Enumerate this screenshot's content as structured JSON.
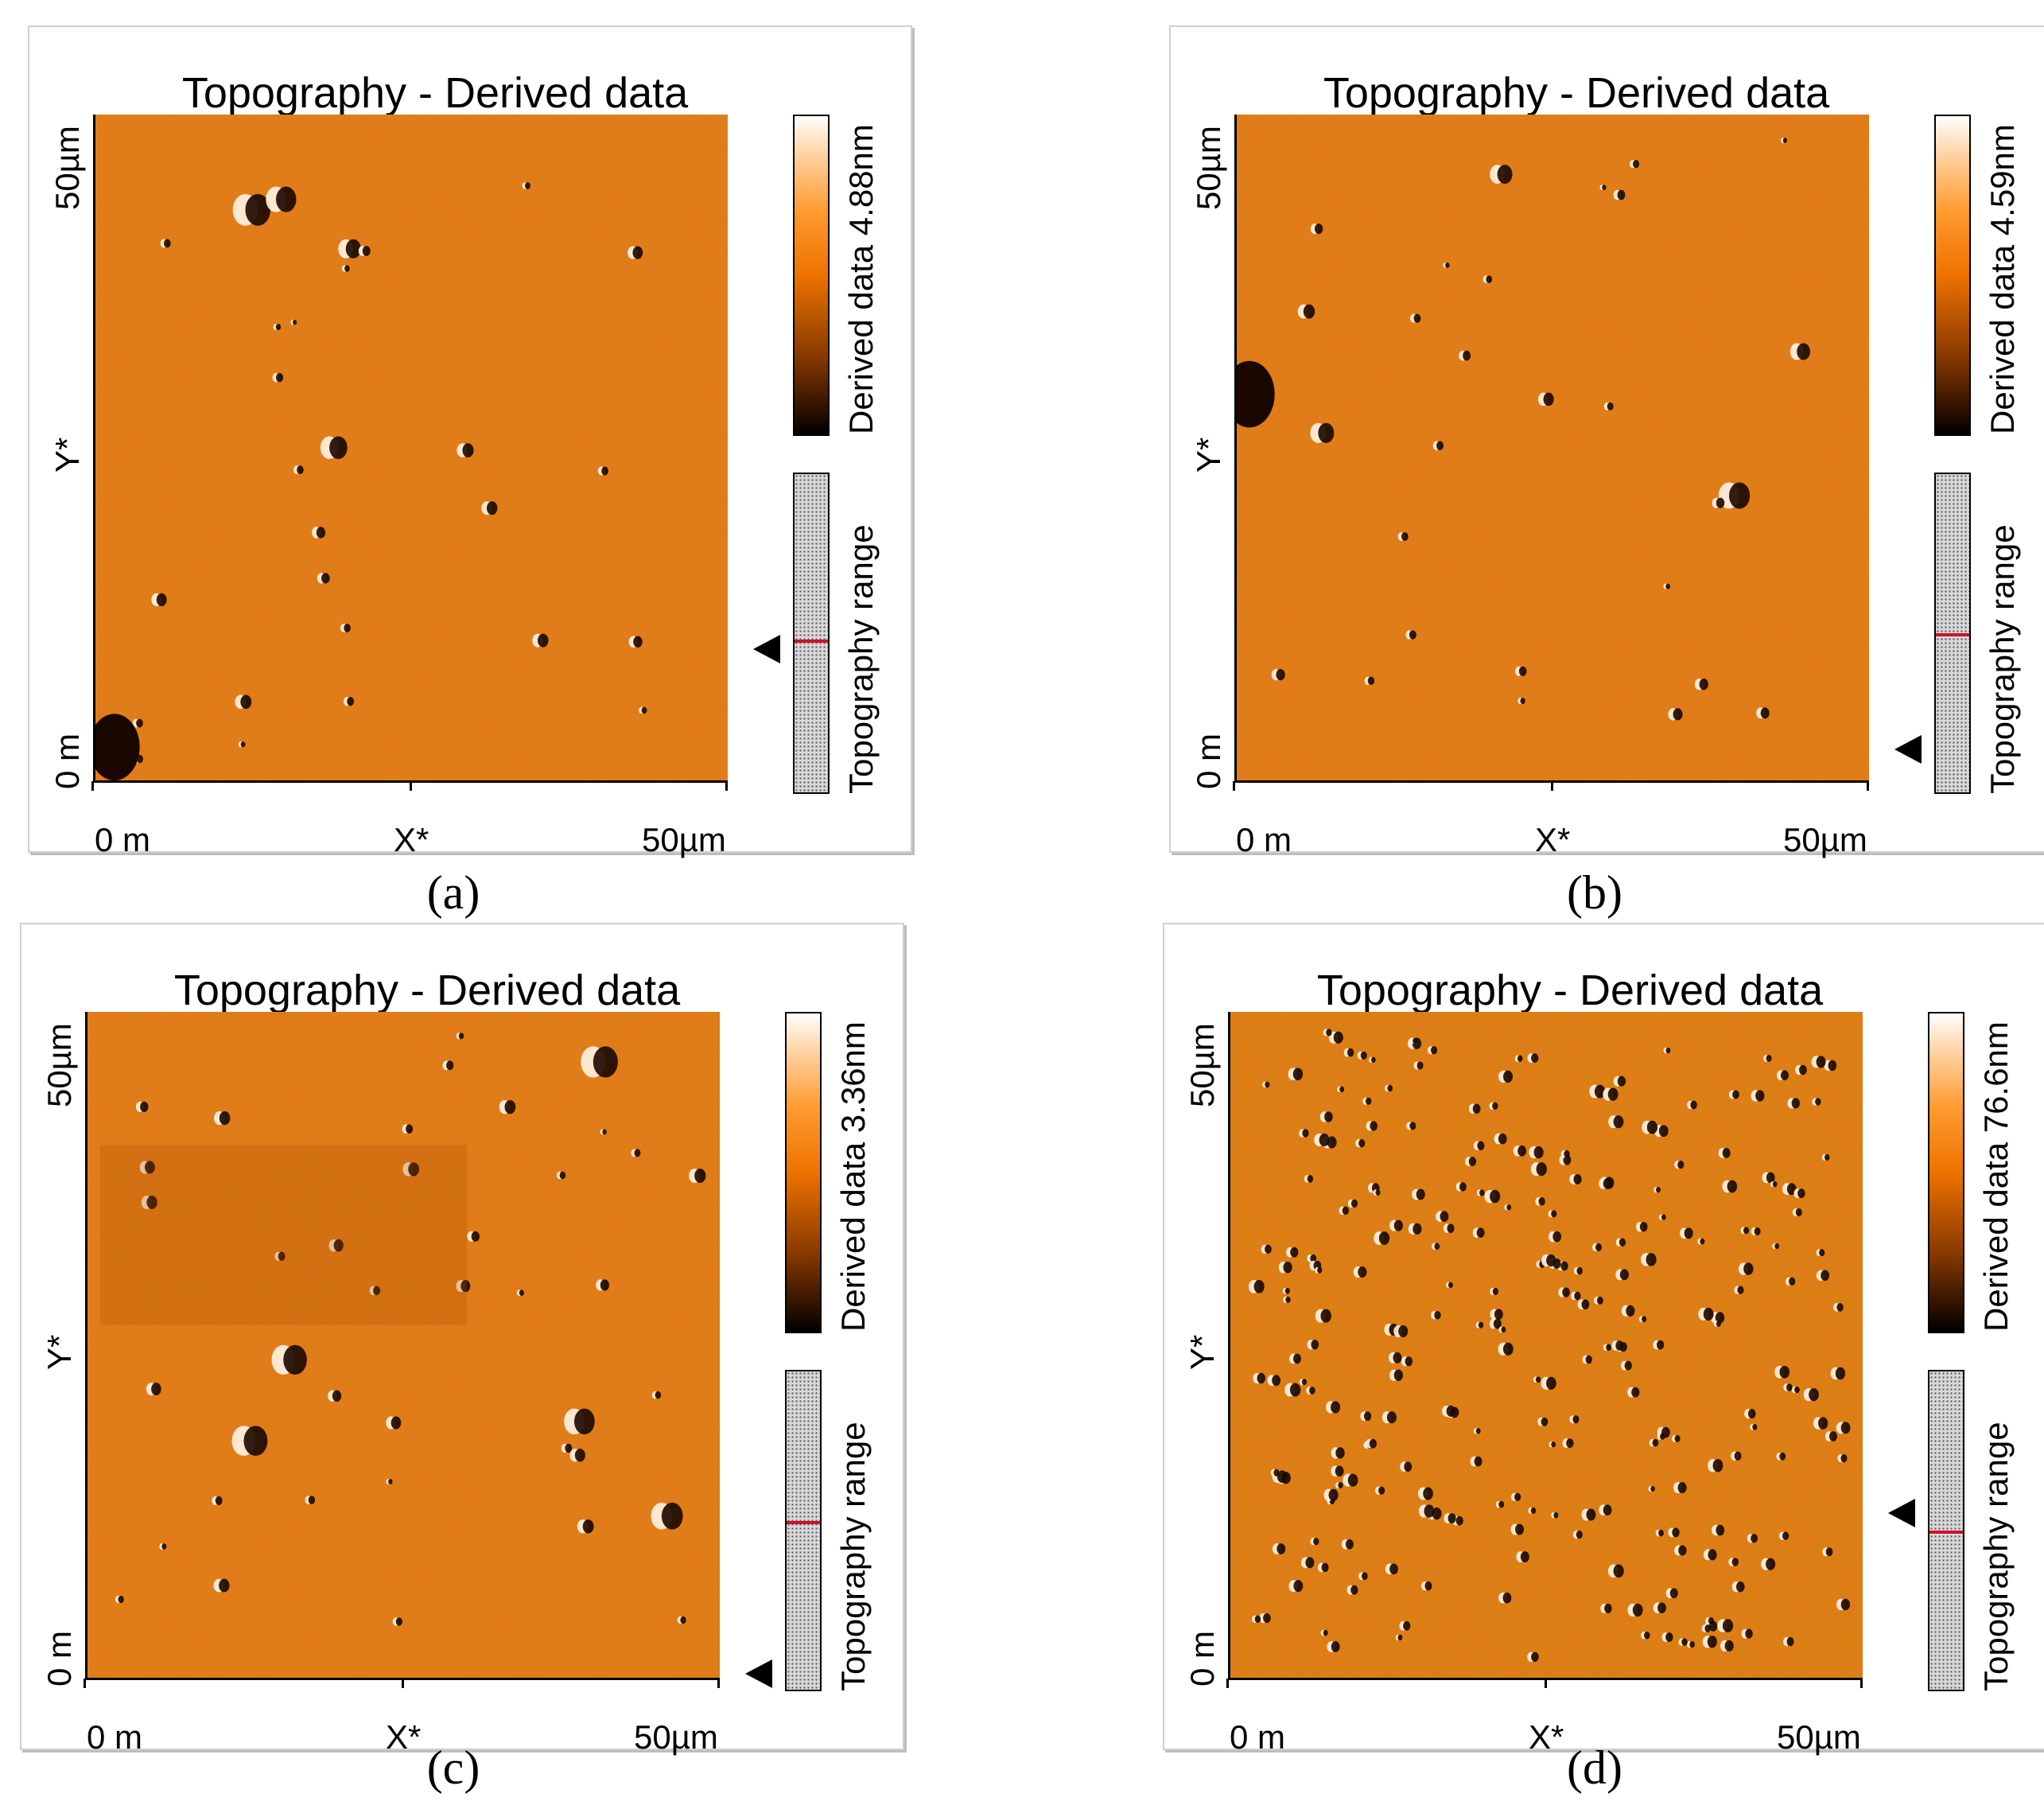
{
  "panels": [
    {
      "id": "a",
      "title": "Topography - Derived data",
      "colorbar_label": "Derived data 4.88nm",
      "range_label": "Topography range",
      "x_ticks": [
        "0 m",
        "X*",
        "50µm"
      ],
      "y_ticks": [
        "0 m",
        "Y*",
        "50µm"
      ],
      "caption": "(a)",
      "range_marker_fraction": 0.52,
      "arrow_fraction": 0.8
    },
    {
      "id": "b",
      "title": "Topography - Derived data",
      "colorbar_label": "Derived data 4.59nm",
      "range_label": "Topography range",
      "x_ticks": [
        "0 m",
        "X*",
        "50µm"
      ],
      "y_ticks": [
        "0 m",
        "Y*",
        "50µm"
      ],
      "caption": "(b)",
      "range_marker_fraction": 0.5,
      "arrow_fraction": 0.95
    },
    {
      "id": "c",
      "title": "Topography - Derived data",
      "colorbar_label": "Derived data 3.36nm",
      "range_label": "Topography range",
      "x_ticks": [
        "0 m",
        "X*",
        "50µm"
      ],
      "y_ticks": [
        "0 m",
        "Y*",
        "50µm"
      ],
      "caption": "(c)",
      "range_marker_fraction": 0.47,
      "arrow_fraction": 0.99
    },
    {
      "id": "d",
      "title": "Topography - Derived data",
      "colorbar_label": "Derived data 76.6nm",
      "range_label": "Topography range",
      "x_ticks": [
        "0 m",
        "X*",
        "50µm"
      ],
      "y_ticks": [
        "0 m",
        "Y*",
        "50µm"
      ],
      "caption": "(d)",
      "range_marker_fraction": 0.5,
      "arrow_fraction": 0.75
    }
  ],
  "colors": {
    "afm_base": "#e67a1e",
    "afm_dark": "#a84a00",
    "afm_light": "#ffb46a",
    "range_marker": "#d0102a"
  }
}
